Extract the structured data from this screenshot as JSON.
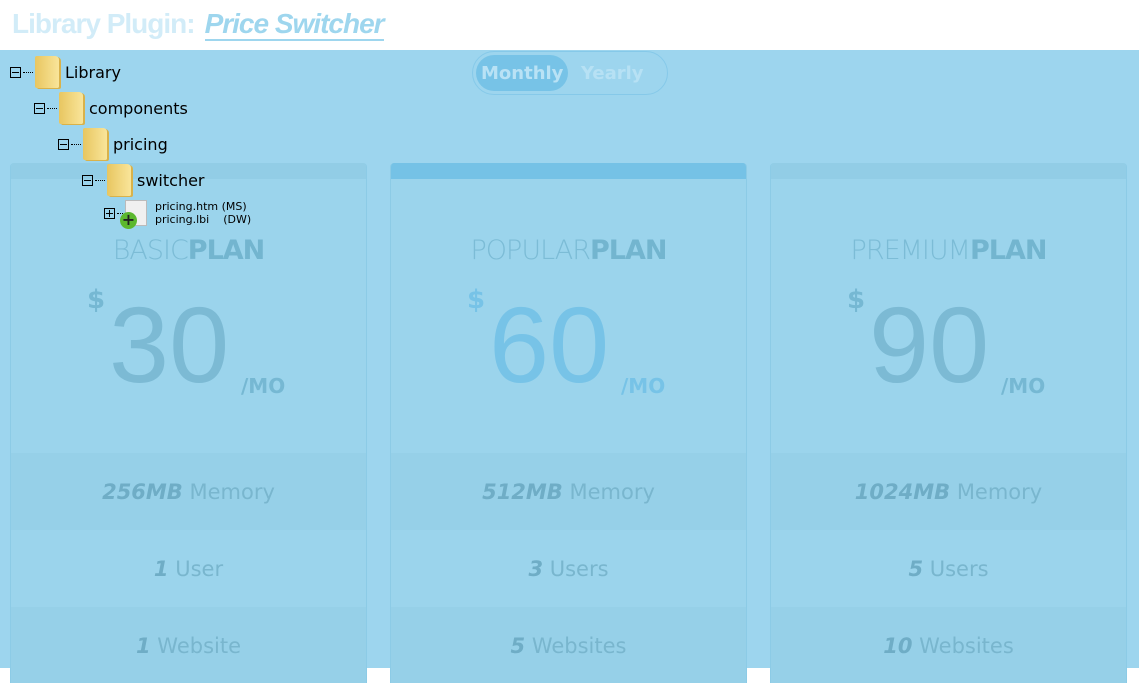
{
  "header": {
    "prefix": "Library Plugin:",
    "title": "Price Switcher"
  },
  "toggle": {
    "monthly": "Monthly",
    "yearly": "Yearly",
    "active": "Monthly"
  },
  "tree": {
    "library": "Library",
    "components": "components",
    "pricing": "pricing",
    "switcher": "switcher",
    "file1": "pricing.htm (MS)",
    "file2": "pricing.lbi    (DW)"
  },
  "plans": [
    {
      "light": "BASIC",
      "bold": "PLAN",
      "currency": "$",
      "price": "30",
      "period": "/MO",
      "memory_value": "256MB",
      "memory_label": "Memory",
      "users_value": "1",
      "users_label": "User",
      "sites_value": "1",
      "sites_label": "Website"
    },
    {
      "light": "POPULAR",
      "bold": "PLAN",
      "currency": "$",
      "price": "60",
      "period": "/MO",
      "memory_value": "512MB",
      "memory_label": "Memory",
      "users_value": "3",
      "users_label": "Users",
      "sites_value": "5",
      "sites_label": "Websites"
    },
    {
      "light": "PREMIUM",
      "bold": "PLAN",
      "currency": "$",
      "price": "90",
      "period": "/MO",
      "memory_value": "1024MB",
      "memory_label": "Memory",
      "users_value": "5",
      "users_label": "Users",
      "sites_value": "10",
      "sites_label": "Websites"
    }
  ],
  "colors": {
    "background": "#9dd5ee",
    "accent": "#75c2e6"
  }
}
